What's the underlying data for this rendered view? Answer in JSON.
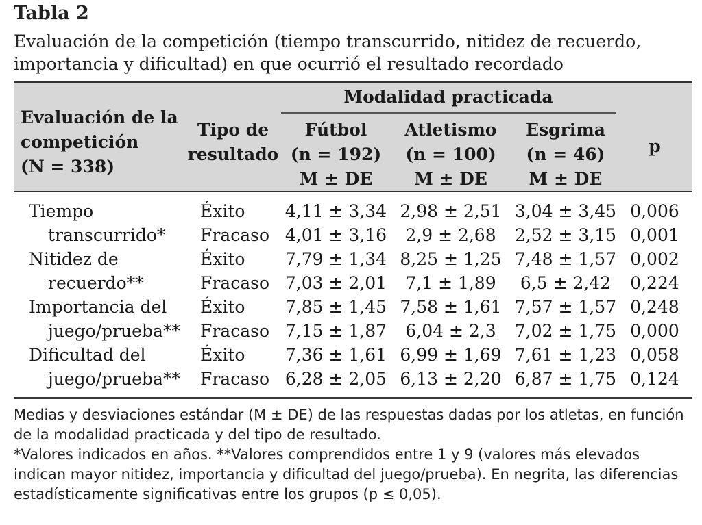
{
  "title": "Tabla 2",
  "subtitle": "Evaluación de la competición (tiempo transcurrido, nitidez de recuerdo, importancia y dificultad) en que ocurrió el resultado recordado",
  "header": {
    "eval_line1": "Evaluación de la",
    "eval_line2": "competición",
    "eval_line3": "(N = 338)",
    "tipo_line1": "Tipo de",
    "tipo_line2": "resultado",
    "group": "Modalidad practicada",
    "cols": [
      {
        "name": "Fútbol",
        "n": "(n = 192)",
        "stat": "M ± DE"
      },
      {
        "name": "Atletismo",
        "n": "(n = 100)",
        "stat": "M ± DE"
      },
      {
        "name": "Esgrima",
        "n": "(n = 46)",
        "stat": "M ± DE"
      }
    ],
    "p": "p"
  },
  "rows": [
    {
      "label": "Tiempo",
      "tipo": "Éxito",
      "futbol": "4,11 ± 3,34",
      "atletismo": "2,98 ± 2,51",
      "esgrima": "3,04 ± 3,45",
      "p": "0,006"
    },
    {
      "label": "transcurrido*",
      "tipo": "Fracaso",
      "futbol": "4,01 ± 3,16",
      "atletismo": "2,9 ± 2,68",
      "esgrima": "2,52 ± 3,15",
      "p": "0,001"
    },
    {
      "label": "Nitidez de",
      "tipo": "Éxito",
      "futbol": "7,79 ± 1,34",
      "atletismo": "8,25 ± 1,25",
      "esgrima": "7,48 ± 1,57",
      "p": "0,002"
    },
    {
      "label": "recuerdo**",
      "tipo": "Fracaso",
      "futbol": "7,03 ± 2,01",
      "atletismo": "7,1 ± 1,89",
      "esgrima": "6,5 ± 2,42",
      "p": "0,224"
    },
    {
      "label": "Importancia del",
      "tipo": "Éxito",
      "futbol": "7,85 ± 1,45",
      "atletismo": "7,58 ± 1,61",
      "esgrima": "7,57 ± 1,57",
      "p": "0,248"
    },
    {
      "label": "juego/prueba**",
      "tipo": "Fracaso",
      "futbol": "7,15 ± 1,87",
      "atletismo": "6,04 ± 2,3",
      "esgrima": "7,02 ± 1,75",
      "p": "0,000"
    },
    {
      "label": "Dificultad del",
      "tipo": "Éxito",
      "futbol": "7,36 ± 1,61",
      "atletismo": "6,99 ± 1,69",
      "esgrima": "7,61 ± 1,23",
      "p": "0,058"
    },
    {
      "label": "juego/prueba**",
      "tipo": "Fracaso",
      "futbol": "6,28 ± 2,05",
      "atletismo": "6,13 ± 2,20",
      "esgrima": "6,87 ± 1,75",
      "p": "0,124"
    }
  ],
  "footnotes": [
    "Medias y desviaciones estándar (M ± DE) de las respuestas dadas por los atletas, en función de la modalidad practicada y del tipo de resultado.",
    "*Valores indicados en años. **Valores comprendidos entre 1 y 9 (valores más elevados indican mayor nitidez, importancia y dificultad del juego/prueba). En negrita, las diferencias estadísticamente significativas entre los grupos (p ≤ 0,05)."
  ]
}
